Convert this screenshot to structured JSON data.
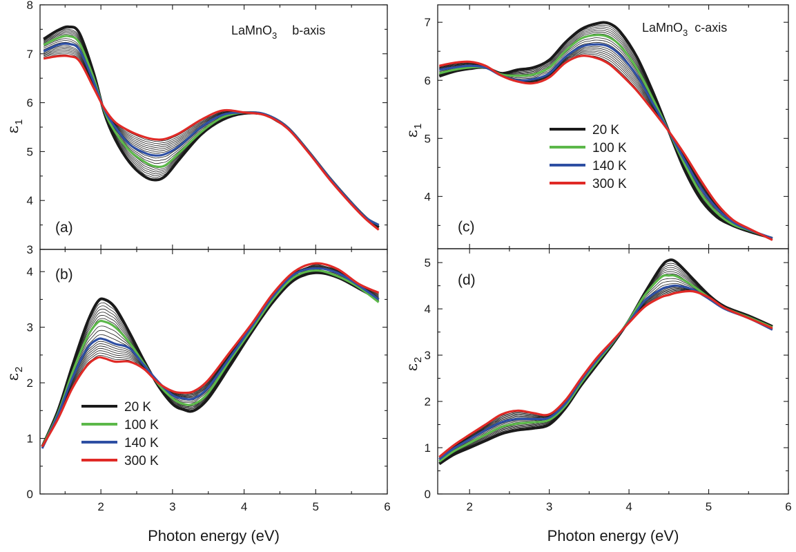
{
  "chart_data": [
    {
      "panel": "(a)",
      "type": "line",
      "title": "LaMnO",
      "title_sub": "3",
      "title_suffix": "b-axis",
      "ylabel": "ε",
      "ylabel_sub": "1",
      "xlabel": "Photon energy (eV)",
      "xlim": [
        1.15,
        6.0
      ],
      "ylim": [
        3,
        8
      ],
      "xticks": [
        2,
        3,
        4,
        5,
        6
      ],
      "yticks": [
        3,
        4,
        5,
        6,
        7,
        8
      ],
      "series": [
        {
          "name": "20 K",
          "color": "#1a1a1a",
          "x": [
            1.2,
            1.4,
            1.55,
            1.7,
            1.9,
            2.05,
            2.2,
            2.4,
            2.6,
            2.75,
            2.9,
            3.1,
            3.4,
            3.7,
            4.0,
            4.3,
            4.6,
            4.9,
            5.2,
            5.5,
            5.7,
            5.88
          ],
          "y": [
            7.3,
            7.48,
            7.55,
            7.42,
            6.6,
            5.78,
            5.25,
            4.78,
            4.5,
            4.42,
            4.5,
            4.85,
            5.35,
            5.65,
            5.78,
            5.75,
            5.5,
            5.0,
            4.45,
            3.95,
            3.65,
            3.45
          ]
        },
        {
          "name": "100 K",
          "color": "#5cb84a",
          "x": [
            1.2,
            1.4,
            1.55,
            1.7,
            1.9,
            2.05,
            2.2,
            2.4,
            2.6,
            2.75,
            2.9,
            3.1,
            3.4,
            3.7,
            4.0,
            4.3,
            4.6,
            4.9,
            5.2,
            5.5,
            5.7,
            5.88
          ],
          "y": [
            7.18,
            7.32,
            7.36,
            7.22,
            6.5,
            5.82,
            5.4,
            5.02,
            4.8,
            4.7,
            4.72,
            4.98,
            5.4,
            5.7,
            5.8,
            5.76,
            5.5,
            5.0,
            4.45,
            3.95,
            3.65,
            3.5
          ]
        },
        {
          "name": "140 K",
          "color": "#2e4fa3",
          "x": [
            1.2,
            1.4,
            1.55,
            1.7,
            1.9,
            2.05,
            2.2,
            2.4,
            2.6,
            2.75,
            2.9,
            3.1,
            3.4,
            3.7,
            4.0,
            4.3,
            4.6,
            4.9,
            5.2,
            5.5,
            5.7,
            5.88
          ],
          "y": [
            7.05,
            7.18,
            7.2,
            7.08,
            6.42,
            5.85,
            5.5,
            5.15,
            4.98,
            4.92,
            4.95,
            5.12,
            5.5,
            5.75,
            5.8,
            5.76,
            5.5,
            5.0,
            4.45,
            3.95,
            3.65,
            3.5
          ]
        },
        {
          "name": "300 K",
          "color": "#e02a26",
          "x": [
            1.2,
            1.4,
            1.55,
            1.7,
            1.9,
            2.05,
            2.2,
            2.4,
            2.6,
            2.75,
            2.9,
            3.1,
            3.4,
            3.7,
            4.0,
            4.3,
            4.6,
            4.9,
            5.2,
            5.5,
            5.7,
            5.88
          ],
          "y": [
            6.9,
            6.95,
            6.95,
            6.85,
            6.3,
            5.88,
            5.6,
            5.42,
            5.3,
            5.25,
            5.26,
            5.38,
            5.65,
            5.84,
            5.8,
            5.74,
            5.48,
            4.98,
            4.42,
            3.92,
            3.62,
            3.4
          ]
        }
      ]
    },
    {
      "panel": "(b)",
      "type": "line",
      "ylabel": "ε",
      "ylabel_sub": "2",
      "xlabel": "Photon energy (eV)",
      "xlim": [
        1.15,
        6.0
      ],
      "ylim": [
        0,
        4.4
      ],
      "xticks": [
        2,
        3,
        4,
        5,
        6
      ],
      "yticks": [
        0,
        1,
        2,
        3,
        4
      ],
      "series": [
        {
          "name": "20 K",
          "color": "#1a1a1a",
          "x": [
            1.18,
            1.4,
            1.6,
            1.8,
            1.95,
            2.05,
            2.2,
            2.4,
            2.6,
            2.8,
            3.0,
            3.15,
            3.3,
            3.5,
            3.8,
            4.1,
            4.4,
            4.7,
            5.0,
            5.3,
            5.6,
            5.88
          ],
          "y": [
            0.85,
            1.5,
            2.3,
            3.05,
            3.45,
            3.5,
            3.35,
            2.9,
            2.4,
            1.95,
            1.62,
            1.52,
            1.5,
            1.72,
            2.3,
            2.9,
            3.45,
            3.85,
            3.98,
            3.9,
            3.7,
            3.5
          ]
        },
        {
          "name": "100 K",
          "color": "#5cb84a",
          "x": [
            1.18,
            1.4,
            1.6,
            1.8,
            1.95,
            2.05,
            2.2,
            2.4,
            2.6,
            2.8,
            3.0,
            3.15,
            3.3,
            3.5,
            3.8,
            4.1,
            4.4,
            4.7,
            5.0,
            5.3,
            5.6,
            5.88
          ],
          "y": [
            0.85,
            1.45,
            2.18,
            2.8,
            3.08,
            3.1,
            3.0,
            2.72,
            2.35,
            1.98,
            1.72,
            1.62,
            1.62,
            1.82,
            2.4,
            2.95,
            3.5,
            3.9,
            4.02,
            3.92,
            3.72,
            3.45
          ]
        },
        {
          "name": "140 K",
          "color": "#2e4fa3",
          "x": [
            1.18,
            1.4,
            1.6,
            1.8,
            1.95,
            2.05,
            2.2,
            2.4,
            2.6,
            2.8,
            3.0,
            3.15,
            3.3,
            3.5,
            3.8,
            4.1,
            4.4,
            4.7,
            5.0,
            5.3,
            5.6,
            5.88
          ],
          "y": [
            0.82,
            1.42,
            2.08,
            2.6,
            2.78,
            2.78,
            2.7,
            2.62,
            2.32,
            2.02,
            1.78,
            1.72,
            1.72,
            1.92,
            2.45,
            3.0,
            3.55,
            3.95,
            4.06,
            3.98,
            3.75,
            3.5
          ]
        },
        {
          "name": "300 K",
          "color": "#e02a26",
          "x": [
            1.18,
            1.4,
            1.6,
            1.8,
            1.95,
            2.05,
            2.2,
            2.4,
            2.6,
            2.8,
            3.0,
            3.15,
            3.3,
            3.5,
            3.8,
            4.1,
            4.4,
            4.7,
            5.0,
            5.3,
            5.6,
            5.88
          ],
          "y": [
            0.85,
            1.35,
            1.9,
            2.3,
            2.45,
            2.44,
            2.38,
            2.38,
            2.25,
            2.0,
            1.85,
            1.82,
            1.85,
            2.05,
            2.55,
            3.05,
            3.6,
            4.0,
            4.15,
            4.05,
            3.78,
            3.62
          ]
        }
      ],
      "legend": {
        "placement": "lower-left",
        "entries": [
          "20 K",
          "100 K",
          "140 K",
          "300 K"
        ]
      }
    },
    {
      "panel": "(c)",
      "type": "line",
      "title": "LaMnO",
      "title_sub": "3",
      "title_suffix": "c-axis",
      "ylabel": "ε",
      "ylabel_sub": "1",
      "xlabel": "Photon energy (eV)",
      "xlim": [
        1.6,
        6.0
      ],
      "ylim": [
        3.1,
        7.3
      ],
      "xticks": [
        2,
        3,
        4,
        5,
        6
      ],
      "yticks": [
        4,
        5,
        6,
        7
      ],
      "series": [
        {
          "name": "20 K",
          "color": "#1a1a1a",
          "x": [
            1.62,
            1.8,
            2.0,
            2.2,
            2.4,
            2.6,
            2.8,
            3.0,
            3.2,
            3.4,
            3.6,
            3.75,
            3.9,
            4.1,
            4.3,
            4.5,
            4.7,
            4.9,
            5.1,
            5.3,
            5.5,
            5.8
          ],
          "y": [
            6.07,
            6.15,
            6.2,
            6.22,
            6.12,
            6.18,
            6.22,
            6.35,
            6.65,
            6.88,
            6.98,
            6.98,
            6.82,
            6.4,
            5.8,
            5.12,
            4.45,
            3.95,
            3.65,
            3.5,
            3.4,
            3.28
          ]
        },
        {
          "name": "100 K",
          "color": "#5cb84a",
          "x": [
            1.62,
            1.8,
            2.0,
            2.2,
            2.4,
            2.6,
            2.8,
            3.0,
            3.2,
            3.4,
            3.6,
            3.75,
            3.9,
            4.1,
            4.3,
            4.5,
            4.7,
            4.9,
            5.1,
            5.3,
            5.5,
            5.8
          ],
          "y": [
            6.12,
            6.18,
            6.22,
            6.22,
            6.1,
            6.08,
            6.1,
            6.22,
            6.5,
            6.72,
            6.78,
            6.74,
            6.58,
            6.2,
            5.68,
            5.12,
            4.55,
            4.05,
            3.72,
            3.52,
            3.42,
            3.28
          ]
        },
        {
          "name": "140 K",
          "color": "#2e4fa3",
          "x": [
            1.62,
            1.8,
            2.0,
            2.2,
            2.4,
            2.6,
            2.8,
            3.0,
            3.2,
            3.4,
            3.6,
            3.75,
            3.9,
            4.1,
            4.3,
            4.5,
            4.7,
            4.9,
            5.1,
            5.3,
            5.5,
            5.8
          ],
          "y": [
            6.18,
            6.22,
            6.25,
            6.22,
            6.08,
            6.0,
            6.02,
            6.12,
            6.4,
            6.58,
            6.62,
            6.58,
            6.42,
            6.08,
            5.6,
            5.12,
            4.62,
            4.15,
            3.8,
            3.56,
            3.43,
            3.28
          ]
        },
        {
          "name": "300 K",
          "color": "#e02a26",
          "x": [
            1.62,
            1.8,
            2.0,
            2.2,
            2.4,
            2.6,
            2.8,
            3.0,
            3.2,
            3.4,
            3.6,
            3.75,
            3.9,
            4.1,
            4.3,
            4.5,
            4.7,
            4.9,
            5.1,
            5.3,
            5.5,
            5.8
          ],
          "y": [
            6.25,
            6.3,
            6.32,
            6.25,
            6.08,
            5.98,
            5.95,
            6.05,
            6.3,
            6.42,
            6.38,
            6.28,
            6.1,
            5.82,
            5.48,
            5.12,
            4.72,
            4.28,
            3.88,
            3.6,
            3.45,
            3.25
          ]
        }
      ],
      "legend": {
        "placement": "middle-left",
        "entries": [
          "20 K",
          "100 K",
          "140 K",
          "300 K"
        ]
      }
    },
    {
      "panel": "(d)",
      "type": "line",
      "ylabel": "ε",
      "ylabel_sub": "2",
      "xlabel": "Photon energy (eV)",
      "xlim": [
        1.6,
        6.0
      ],
      "ylim": [
        0,
        5.3
      ],
      "xticks": [
        2,
        3,
        4,
        5,
        6
      ],
      "yticks": [
        0,
        1,
        2,
        3,
        4,
        5
      ],
      "series": [
        {
          "name": "20 K",
          "color": "#1a1a1a",
          "x": [
            1.62,
            1.8,
            2.0,
            2.2,
            2.4,
            2.6,
            2.8,
            3.0,
            3.2,
            3.4,
            3.6,
            3.8,
            4.0,
            4.2,
            4.4,
            4.5,
            4.6,
            4.8,
            5.0,
            5.2,
            5.5,
            5.8
          ],
          "y": [
            0.65,
            0.85,
            1.0,
            1.15,
            1.3,
            1.38,
            1.42,
            1.5,
            1.85,
            2.35,
            2.8,
            3.25,
            3.75,
            4.35,
            4.9,
            5.05,
            5.0,
            4.65,
            4.3,
            4.05,
            3.85,
            3.62
          ]
        },
        {
          "name": "100 K",
          "color": "#5cb84a",
          "x": [
            1.62,
            1.8,
            2.0,
            2.2,
            2.4,
            2.6,
            2.8,
            3.0,
            3.2,
            3.4,
            3.6,
            3.8,
            4.0,
            4.2,
            4.4,
            4.5,
            4.6,
            4.8,
            5.0,
            5.2,
            5.5,
            5.8
          ],
          "y": [
            0.7,
            0.92,
            1.1,
            1.28,
            1.45,
            1.52,
            1.55,
            1.6,
            1.9,
            2.4,
            2.85,
            3.28,
            3.75,
            4.3,
            4.68,
            4.72,
            4.7,
            4.5,
            4.25,
            4.02,
            3.82,
            3.6
          ]
        },
        {
          "name": "140 K",
          "color": "#2e4fa3",
          "x": [
            1.62,
            1.8,
            2.0,
            2.2,
            2.4,
            2.6,
            2.8,
            3.0,
            3.2,
            3.4,
            3.6,
            3.8,
            4.0,
            4.2,
            4.4,
            4.5,
            4.6,
            4.8,
            5.0,
            5.2,
            5.5,
            5.8
          ],
          "y": [
            0.75,
            0.98,
            1.18,
            1.38,
            1.55,
            1.62,
            1.62,
            1.65,
            1.95,
            2.45,
            2.9,
            3.3,
            3.72,
            4.18,
            4.42,
            4.48,
            4.5,
            4.42,
            4.22,
            4.0,
            3.8,
            3.55
          ]
        },
        {
          "name": "300 K",
          "color": "#e02a26",
          "x": [
            1.62,
            1.8,
            2.0,
            2.2,
            2.4,
            2.6,
            2.8,
            3.0,
            3.2,
            3.4,
            3.6,
            3.8,
            4.0,
            4.2,
            4.4,
            4.5,
            4.6,
            4.8,
            5.0,
            5.2,
            5.5,
            5.8
          ],
          "y": [
            0.8,
            1.05,
            1.28,
            1.5,
            1.72,
            1.8,
            1.75,
            1.72,
            2.02,
            2.5,
            2.95,
            3.32,
            3.7,
            4.05,
            4.25,
            4.3,
            4.35,
            4.38,
            4.25,
            4.02,
            3.8,
            3.58
          ]
        }
      ]
    }
  ],
  "legend_labels": [
    "20 K",
    "100 K",
    "140 K",
    "300 K"
  ],
  "colors": {
    "20 K": "#1a1a1a",
    "100 K": "#5cb84a",
    "140 K": "#2e4fa3",
    "300 K": "#e02a26",
    "intermediate": "#1a1a1a"
  },
  "xlabel_text": "Photon energy (eV)"
}
